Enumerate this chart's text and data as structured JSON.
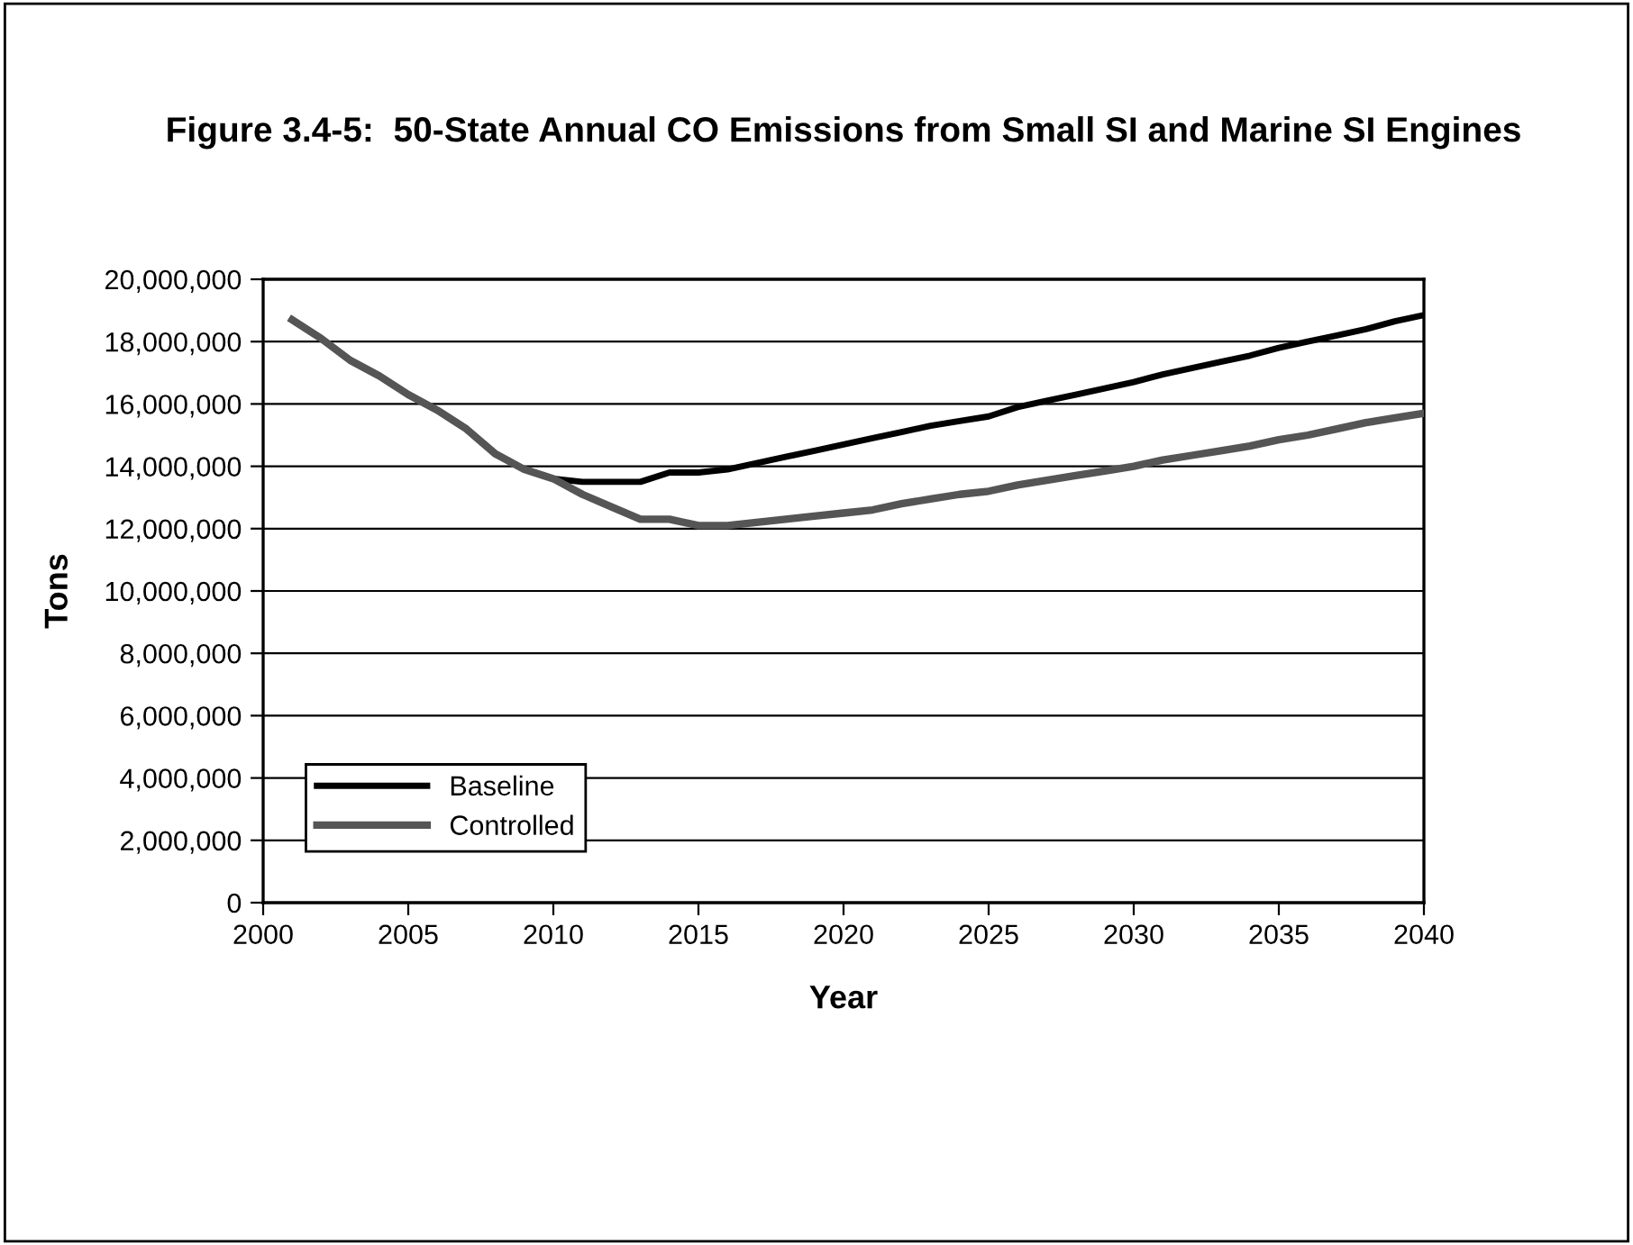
{
  "chart_data": {
    "type": "line",
    "title": "Figure 3.4-5:  50-State Annual CO Emissions from Small SI and Marine SI Engines",
    "xlabel": "Year",
    "ylabel": "Tons",
    "x": [
      2001,
      2002,
      2003,
      2004,
      2005,
      2006,
      2007,
      2008,
      2009,
      2010,
      2011,
      2012,
      2013,
      2014,
      2015,
      2016,
      2017,
      2018,
      2019,
      2020,
      2021,
      2022,
      2023,
      2024,
      2025,
      2026,
      2027,
      2028,
      2029,
      2030,
      2031,
      2032,
      2033,
      2034,
      2035,
      2036,
      2037,
      2038,
      2039,
      2040
    ],
    "series": [
      {
        "name": "Baseline",
        "color": "#000000",
        "values": [
          18700000,
          18100000,
          17400000,
          16900000,
          16300000,
          15800000,
          15200000,
          14400000,
          13900000,
          13600000,
          13500000,
          13500000,
          13500000,
          13800000,
          13800000,
          13900000,
          14100000,
          14300000,
          14500000,
          14700000,
          14900000,
          15100000,
          15300000,
          15450000,
          15600000,
          15900000,
          16100000,
          16300000,
          16500000,
          16700000,
          16950000,
          17150000,
          17350000,
          17550000,
          17800000,
          18000000,
          18200000,
          18400000,
          18650000,
          18850000
        ]
      },
      {
        "name": "Controlled",
        "color": "#555555",
        "values": [
          18700000,
          18100000,
          17400000,
          16900000,
          16300000,
          15800000,
          15200000,
          14400000,
          13900000,
          13600000,
          13100000,
          12700000,
          12300000,
          12300000,
          12100000,
          12100000,
          12200000,
          12300000,
          12400000,
          12500000,
          12600000,
          12800000,
          12950000,
          13100000,
          13200000,
          13400000,
          13550000,
          13700000,
          13850000,
          14000000,
          14200000,
          14350000,
          14500000,
          14650000,
          14850000,
          15000000,
          15200000,
          15400000,
          15550000,
          15700000
        ]
      }
    ],
    "xlim": [
      2000,
      2040
    ],
    "xticks": [
      2000,
      2005,
      2010,
      2015,
      2020,
      2025,
      2030,
      2035,
      2040
    ],
    "ylim": [
      0,
      20000000
    ],
    "yticks": [
      {
        "value": 0,
        "label": "0"
      },
      {
        "value": 2000000,
        "label": "2,000,000"
      },
      {
        "value": 4000000,
        "label": "4,000,000"
      },
      {
        "value": 6000000,
        "label": "6,000,000"
      },
      {
        "value": 8000000,
        "label": "8,000,000"
      },
      {
        "value": 10000000,
        "label": "10,000,000"
      },
      {
        "value": 12000000,
        "label": "12,000,000"
      },
      {
        "value": 14000000,
        "label": "14,000,000"
      },
      {
        "value": 16000000,
        "label": "16,000,000"
      },
      {
        "value": 18000000,
        "label": "18,000,000"
      },
      {
        "value": 20000000,
        "label": "20,000,000"
      }
    ],
    "grid": "y",
    "legend": "bottom left",
    "marker": "none",
    "line_style": "solid"
  }
}
